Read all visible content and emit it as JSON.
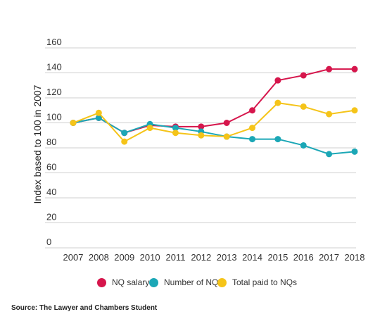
{
  "chart_data": {
    "type": "line",
    "categories": [
      "2007",
      "2008",
      "2009",
      "2010",
      "2011",
      "2012",
      "2013",
      "2014",
      "2015",
      "2016",
      "2017",
      "2018"
    ],
    "ylabel": "Index based to 100 in 2007",
    "ylim": [
      0,
      160
    ],
    "yticks": [
      0,
      20,
      40,
      60,
      80,
      100,
      120,
      140,
      160
    ],
    "grid": "horizontal",
    "legend_position": "bottom",
    "series": [
      {
        "name": "NQ salary",
        "color": "#d6164c",
        "values": [
          100,
          104,
          92,
          98,
          97,
          97,
          100,
          110,
          134,
          138,
          143,
          143
        ]
      },
      {
        "name": "Number of NQs",
        "color": "#1ba7b6",
        "values": [
          100,
          104,
          92,
          99,
          96,
          93,
          89,
          87,
          87,
          82,
          75,
          77
        ]
      },
      {
        "name": "Total paid to NQs",
        "color": "#f5c419",
        "values": [
          100,
          108,
          85,
          96,
          92,
          90,
          89,
          96,
          116,
          113,
          107,
          110
        ]
      }
    ]
  },
  "source": "Source: The Lawyer and Chambers Student"
}
